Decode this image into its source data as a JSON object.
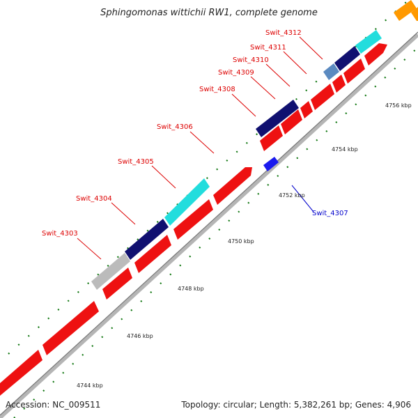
{
  "title": "Sphingomonas wittichii RW1, complete genome",
  "footer": {
    "accession": "Accession: NC_009511",
    "summary": "Topology: circular; Length: 5,382,261 bp; Genes: 4,906"
  },
  "ticks": [
    "4744 kbp",
    "4746 kbp",
    "4748 kbp",
    "4750 kbp",
    "4752 kbp",
    "4754 kbp",
    "4756 kbp"
  ],
  "gene_labels": [
    {
      "text": "Swit_4303",
      "color": "#dd0000"
    },
    {
      "text": "Swit_4304",
      "color": "#dd0000"
    },
    {
      "text": "Swit_4305",
      "color": "#dd0000"
    },
    {
      "text": "Swit_4306",
      "color": "#dd0000"
    },
    {
      "text": "Swit_4308",
      "color": "#dd0000"
    },
    {
      "text": "Swit_4309",
      "color": "#dd0000"
    },
    {
      "text": "Swit_4310",
      "color": "#dd0000"
    },
    {
      "text": "Swit_4311",
      "color": "#dd0000"
    },
    {
      "text": "Swit_4312",
      "color": "#dd0000"
    },
    {
      "text": "Swit_4307",
      "color": "#0000cc"
    }
  ],
  "colors": {
    "forward_gene": "#ee1111",
    "reverse_gene": "#1a1aee",
    "backbone": "#999999",
    "tick": "#117711",
    "cog_navy": "#101070",
    "cog_cyan": "#22dddd",
    "cog_gray": "#bbbbbb",
    "cog_steelblue": "#5b8ac0",
    "cog_orange": "#ff9900"
  }
}
